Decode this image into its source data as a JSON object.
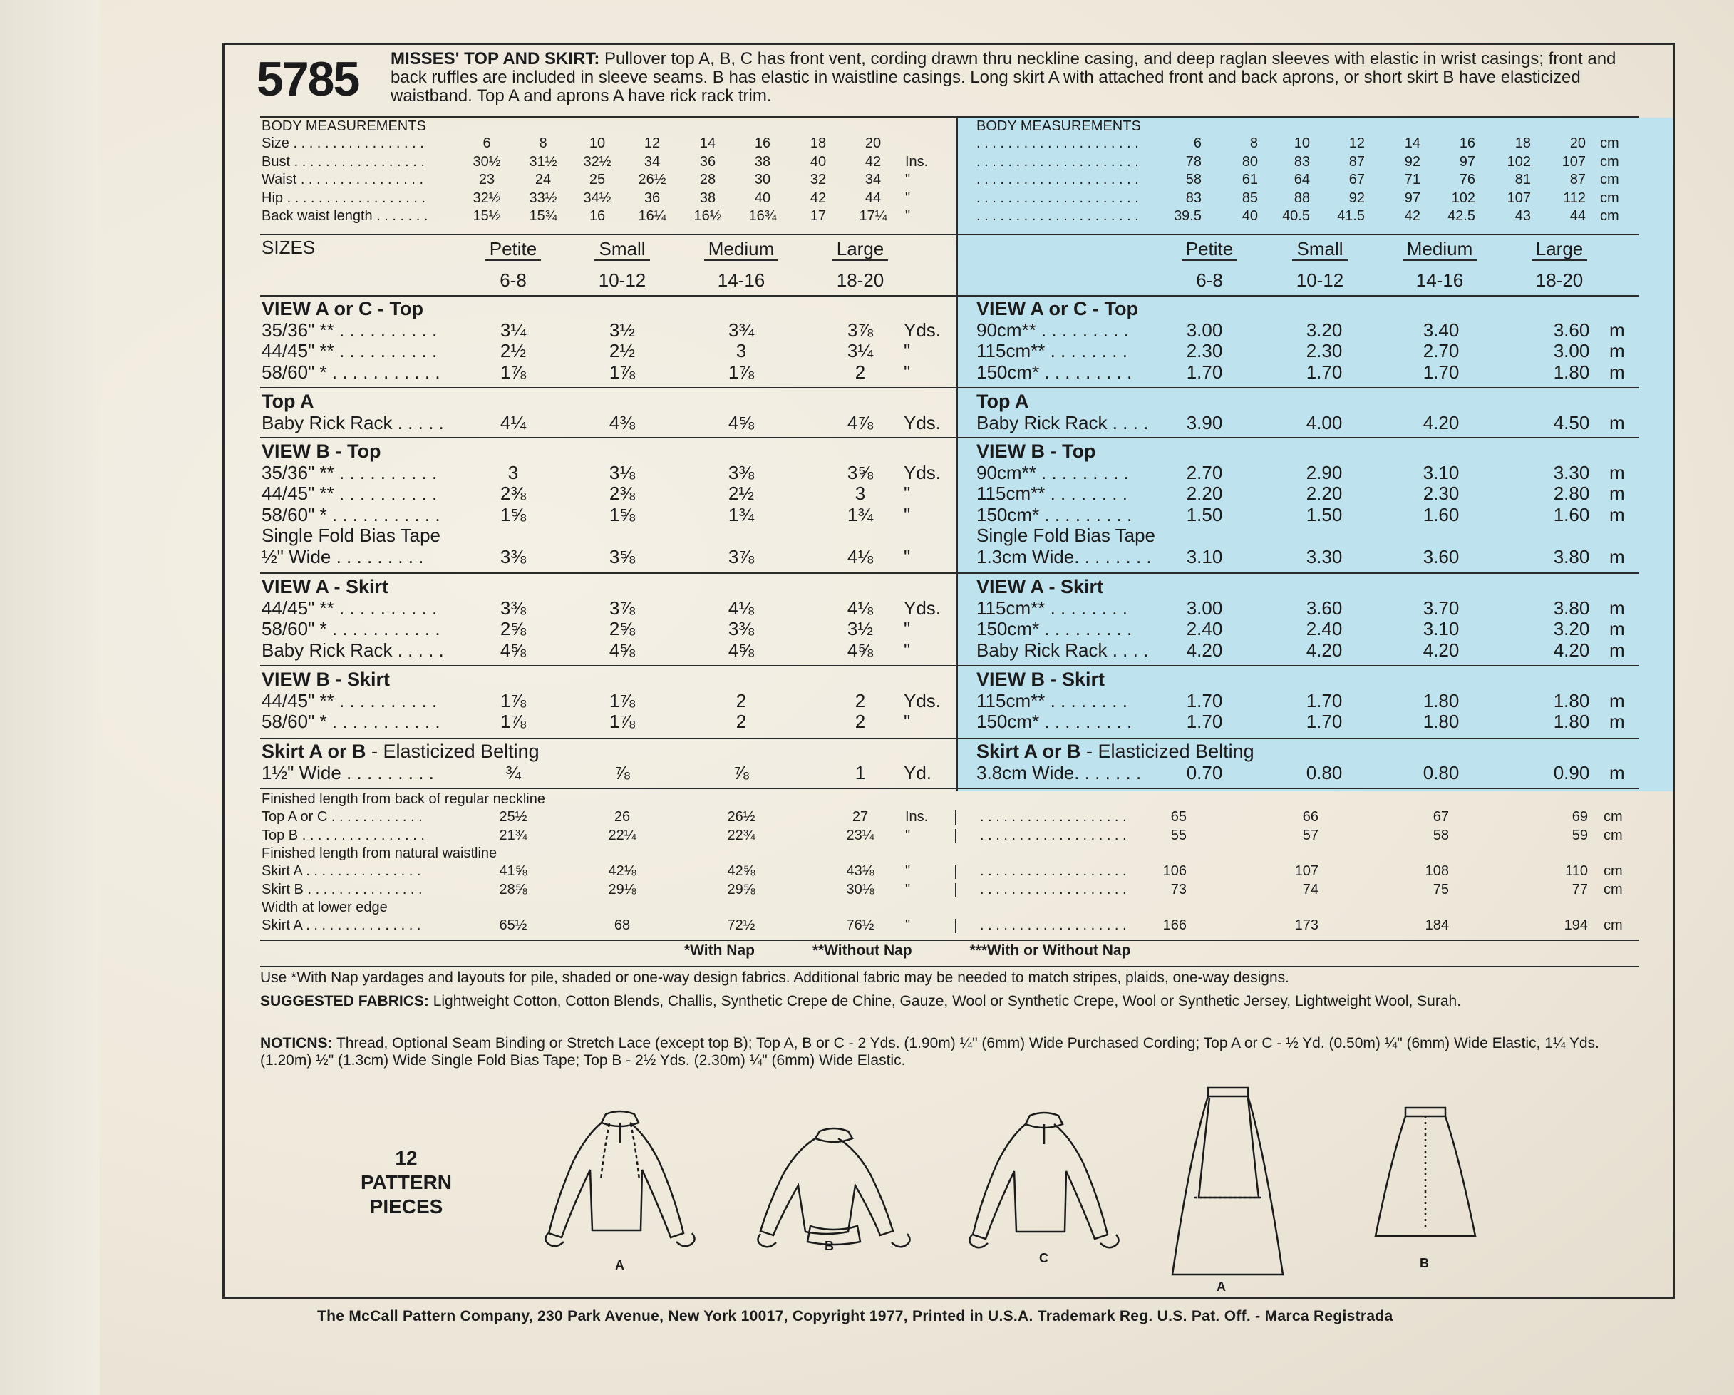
{
  "style_number": "5785",
  "description": {
    "title": "MISSES' TOP AND SKIRT:",
    "text": " Pullover top A, B, C has front vent, cording drawn thru neckline casing, and deep raglan sleeves with elastic in wrist casings; front and back ruffles are included in sleeve seams. B has elastic in waistline casings. Long skirt A with attached front and back aprons, or short skirt B have elasticized waistband. Top A and aprons A have rick rack trim."
  },
  "body_measurements": {
    "heading": "BODY MEASUREMENTS",
    "imperial": {
      "rows": [
        {
          "label": "Size . . . . . . . . . . . . . . . . .",
          "values": [
            "6",
            "8",
            "10",
            "12",
            "14",
            "16",
            "18",
            "20"
          ],
          "unit": ""
        },
        {
          "label": "Bust . . . . . . . . . . . . . . . . .",
          "values": [
            "30½",
            "31½",
            "32½",
            "34",
            "36",
            "38",
            "40",
            "42"
          ],
          "unit": "Ins."
        },
        {
          "label": "Waist . . . . . . . . . . . . . . . .",
          "values": [
            "23",
            "24",
            "25",
            "26½",
            "28",
            "30",
            "32",
            "34"
          ],
          "unit": "\""
        },
        {
          "label": "Hip . . . . . . . . . . . . . . . . . .",
          "values": [
            "32½",
            "33½",
            "34½",
            "36",
            "38",
            "40",
            "42",
            "44"
          ],
          "unit": "\""
        },
        {
          "label": "Back waist length . . . . . . .",
          "values": [
            "15½",
            "15¾",
            "16",
            "16¼",
            "16½",
            "16¾",
            "17",
            "17¼"
          ],
          "unit": "\""
        }
      ]
    },
    "metric": {
      "rows": [
        {
          "label": ". . . . . . . . . . . . . . . . . . . . .",
          "values": [
            "6",
            "8",
            "10",
            "12",
            "14",
            "16",
            "18",
            "20"
          ],
          "unit": "cm"
        },
        {
          "label": ". . . . . . . . . . . . . . . . . . . . .",
          "values": [
            "78",
            "80",
            "83",
            "87",
            "92",
            "97",
            "102",
            "107"
          ],
          "unit": "cm"
        },
        {
          "label": ". . . . . . . . . . . . . . . . . . . . .",
          "values": [
            "58",
            "61",
            "64",
            "67",
            "71",
            "76",
            "81",
            "87"
          ],
          "unit": "cm"
        },
        {
          "label": ". . . . . . . . . . . . . . . . . . . . .",
          "values": [
            "83",
            "85",
            "88",
            "92",
            "97",
            "102",
            "107",
            "112"
          ],
          "unit": "cm"
        },
        {
          "label": ". . . . . . . . . . . . . . . . . . . . .",
          "values": [
            "39.5",
            "40",
            "40.5",
            "41.5",
            "42",
            "42.5",
            "43",
            "44"
          ],
          "unit": "cm"
        }
      ]
    }
  },
  "sizes": {
    "heading": "SIZES",
    "names": [
      "Petite",
      "Small",
      "Medium",
      "Large"
    ],
    "ranges": [
      "6-8",
      "10-12",
      "14-16",
      "18-20"
    ]
  },
  "yardage_imperial": [
    {
      "title": "VIEW A or C - Top",
      "rows": [
        {
          "label": "35/36\" ** . . . . . . . . . .",
          "values": [
            "3¼",
            "3½",
            "3¾",
            "3⅞"
          ],
          "unit": "Yds."
        },
        {
          "label": "44/45\" ** . . . . . . . . . .",
          "values": [
            "2½",
            "2½",
            "3",
            "3¼"
          ],
          "unit": "\""
        },
        {
          "label": "58/60\" * . . . . . . . . . . .",
          "values": [
            "1⅞",
            "1⅞",
            "1⅞",
            "2"
          ],
          "unit": "\""
        }
      ]
    },
    {
      "title": "Top A",
      "rows": [
        {
          "label": "Baby Rick Rack . . . . .",
          "values": [
            "4¼",
            "4⅜",
            "4⅝",
            "4⅞"
          ],
          "unit": "Yds."
        }
      ]
    },
    {
      "title": "VIEW B - Top",
      "rows": [
        {
          "label": "35/36\" ** . . . . . . . . . .",
          "values": [
            "3",
            "3⅛",
            "3⅜",
            "3⅝"
          ],
          "unit": "Yds."
        },
        {
          "label": "44/45\" ** . . . . . . . . . .",
          "values": [
            "2⅜",
            "2⅜",
            "2½",
            "3"
          ],
          "unit": "\""
        },
        {
          "label": "58/60\" * . . . . . . . . . . .",
          "values": [
            "1⅝",
            "1⅝",
            "1¾",
            "1¾"
          ],
          "unit": "\""
        },
        {
          "label": "Single Fold Bias Tape",
          "values": [
            "",
            "",
            "",
            ""
          ],
          "unit": ""
        },
        {
          "label": "½\" Wide . . . . . . . . .",
          "values": [
            "3⅜",
            "3⅝",
            "3⅞",
            "4⅛"
          ],
          "unit": "\""
        }
      ]
    },
    {
      "title": "VIEW A - Skirt",
      "rows": [
        {
          "label": "44/45\" ** . . . . . . . . . .",
          "values": [
            "3⅜",
            "3⅞",
            "4⅛",
            "4⅛"
          ],
          "unit": "Yds."
        },
        {
          "label": "58/60\" * . . . . . . . . . . .",
          "values": [
            "2⅝",
            "2⅝",
            "3⅜",
            "3½"
          ],
          "unit": "\""
        },
        {
          "label": "Baby Rick Rack . . . . .",
          "values": [
            "4⅝",
            "4⅝",
            "4⅝",
            "4⅝"
          ],
          "unit": "\""
        }
      ]
    },
    {
      "title": "VIEW B - Skirt",
      "rows": [
        {
          "label": "44/45\" ** . . . . . . . . . .",
          "values": [
            "1⅞",
            "1⅞",
            "2",
            "2"
          ],
          "unit": "Yds."
        },
        {
          "label": "58/60\" * . . . . . . . . . . .",
          "values": [
            "1⅞",
            "1⅞",
            "2",
            "2"
          ],
          "unit": "\""
        }
      ]
    },
    {
      "title": "Skirt A or B",
      "title_suffix": " - Elasticized Belting",
      "rows": [
        {
          "label": "1½\" Wide . . . . . . . . .",
          "values": [
            "¾",
            "⅞",
            "⅞",
            "1"
          ],
          "unit": "Yd."
        }
      ]
    }
  ],
  "yardage_metric": [
    {
      "title": "VIEW A or C - Top",
      "rows": [
        {
          "label": "90cm** . . . . . . . . .",
          "values": [
            "3.00",
            "3.20",
            "3.40",
            "3.60"
          ],
          "unit": "m"
        },
        {
          "label": "115cm** . . . . . . . .",
          "values": [
            "2.30",
            "2.30",
            "2.70",
            "3.00"
          ],
          "unit": "m"
        },
        {
          "label": "150cm* . . . . . . . . .",
          "values": [
            "1.70",
            "1.70",
            "1.70",
            "1.80"
          ],
          "unit": "m"
        }
      ]
    },
    {
      "title": "Top A",
      "rows": [
        {
          "label": "Baby Rick Rack . . . .",
          "values": [
            "3.90",
            "4.00",
            "4.20",
            "4.50"
          ],
          "unit": "m"
        }
      ]
    },
    {
      "title": "VIEW B - Top",
      "rows": [
        {
          "label": "90cm** . . . . . . . . .",
          "values": [
            "2.70",
            "2.90",
            "3.10",
            "3.30"
          ],
          "unit": "m"
        },
        {
          "label": "115cm** . . . . . . . .",
          "values": [
            "2.20",
            "2.20",
            "2.30",
            "2.80"
          ],
          "unit": "m"
        },
        {
          "label": "150cm* . . . . . . . . .",
          "values": [
            "1.50",
            "1.50",
            "1.60",
            "1.60"
          ],
          "unit": "m"
        },
        {
          "label": "Single Fold Bias Tape",
          "values": [
            "",
            "",
            "",
            ""
          ],
          "unit": ""
        },
        {
          "label": "1.3cm Wide. . . . . . . .",
          "values": [
            "3.10",
            "3.30",
            "3.60",
            "3.80"
          ],
          "unit": "m"
        }
      ]
    },
    {
      "title": "VIEW A - Skirt",
      "rows": [
        {
          "label": "115cm** . . . . . . . .",
          "values": [
            "3.00",
            "3.60",
            "3.70",
            "3.80"
          ],
          "unit": "m"
        },
        {
          "label": "150cm* . . . . . . . . .",
          "values": [
            "2.40",
            "2.40",
            "3.10",
            "3.20"
          ],
          "unit": "m"
        },
        {
          "label": "Baby Rick Rack . . . .",
          "values": [
            "4.20",
            "4.20",
            "4.20",
            "4.20"
          ],
          "unit": "m"
        }
      ]
    },
    {
      "title": "VIEW B - Skirt",
      "rows": [
        {
          "label": "115cm** . . . . . . . .",
          "values": [
            "1.70",
            "1.70",
            "1.80",
            "1.80"
          ],
          "unit": "m"
        },
        {
          "label": "150cm* . . . . . . . . .",
          "values": [
            "1.70",
            "1.70",
            "1.80",
            "1.80"
          ],
          "unit": "m"
        }
      ]
    },
    {
      "title": "Skirt A or B",
      "title_suffix": " - Elasticized Belting",
      "rows": [
        {
          "label": "3.8cm Wide. . . . . . .",
          "values": [
            "0.70",
            "0.80",
            "0.80",
            "0.90"
          ],
          "unit": "m"
        }
      ]
    }
  ],
  "finished": {
    "rows": [
      {
        "type": "head",
        "label": "Finished length from back of regular neckline"
      },
      {
        "type": "row",
        "label": "Top A or C . . . . . . . . . . . .",
        "values": [
          "25½",
          "26",
          "26½",
          "27"
        ],
        "unit": "Ins.",
        "metric": [
          "65",
          "66",
          "67",
          "69"
        ],
        "munit": "cm"
      },
      {
        "type": "row",
        "label": "Top B . . . . . . . . . . . . . . . .",
        "values": [
          "21¾",
          "22¼",
          "22¾",
          "23¼"
        ],
        "unit": "\"",
        "metric": [
          "55",
          "57",
          "58",
          "59"
        ],
        "munit": "cm"
      },
      {
        "type": "head",
        "label": "Finished length from natural waistline"
      },
      {
        "type": "row",
        "label": "Skirt A . . . . . . . . . . . . . . .",
        "values": [
          "41⅝",
          "42⅛",
          "42⅝",
          "43⅛"
        ],
        "unit": "\"",
        "metric": [
          "106",
          "107",
          "108",
          "110"
        ],
        "munit": "cm"
      },
      {
        "type": "row",
        "label": "Skirt B . . . . . . . . . . . . . . .",
        "values": [
          "28⅝",
          "29⅛",
          "29⅝",
          "30⅛"
        ],
        "unit": "\"",
        "metric": [
          "73",
          "74",
          "75",
          "77"
        ],
        "munit": "cm"
      },
      {
        "type": "head",
        "label": "Width at lower edge"
      },
      {
        "type": "row",
        "label": "Skirt A . . . . . . . . . . . . . . .",
        "values": [
          "65½",
          "68",
          "72½",
          "76½"
        ],
        "unit": "\"",
        "metric": [
          "166",
          "173",
          "184",
          "194"
        ],
        "munit": "cm"
      }
    ],
    "metric_dots": ". . . . . . . . . . . . . . . . . . ."
  },
  "nap_keys": [
    "*With Nap",
    "**Without Nap",
    "***With or Without Nap"
  ],
  "nap_note": "Use *With Nap yardages and layouts for pile, shaded or one-way design fabrics. Additional fabric may be needed to match stripes, plaids, one-way designs.",
  "suggested_fabrics": {
    "label": "SUGGESTED FABRICS:",
    "text": " Lightweight Cotton, Cotton Blends, Challis, Synthetic Crepe de Chine, Gauze, Wool or Synthetic Crepe, Wool or Synthetic Jersey, Lightweight Wool, Surah."
  },
  "notions": {
    "label": "NOTICNS:",
    "text": " Thread, Optional Seam Binding or Stretch Lace (except top B); Top A, B or C - 2 Yds. (1.90m) ¼\" (6mm) Wide Purchased Cording; Top A or C - ½ Yd. (0.50m) ¼\" (6mm) Wide Elastic, 1¼ Yds. (1.20m) ½\" (1.3cm) Wide Single Fold Bias Tape; Top B - 2½ Yds. (2.30m) ¼\" (6mm) Wide Elastic."
  },
  "pattern_pieces": {
    "count": "12",
    "line1": "PATTERN",
    "line2": "PIECES"
  },
  "views": [
    "A",
    "B",
    "C",
    "A",
    "B"
  ],
  "footer": "The McCall Pattern Company, 230 Park Avenue, New York 10017, Copyright 1977, Printed in U.S.A. Trademark Reg. U.S. Pat. Off. - Marca Registrada"
}
